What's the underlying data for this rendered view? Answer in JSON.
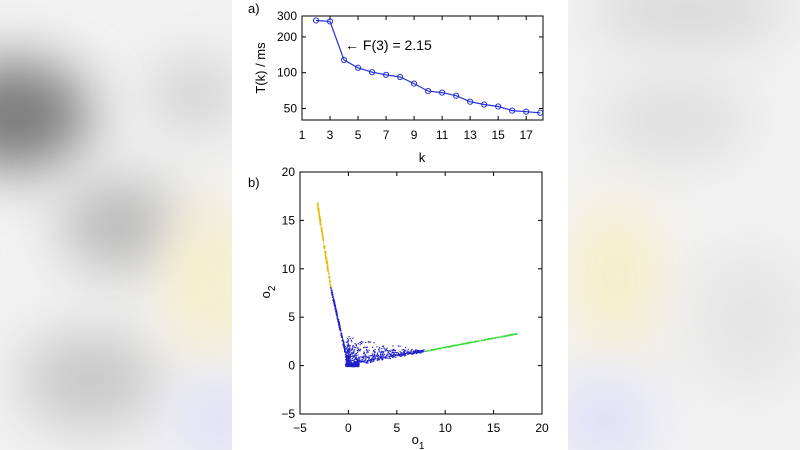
{
  "colors": {
    "line": "#2330d8",
    "cluster_main": "#1f1fc8",
    "cluster_yellow": "#e6b800",
    "cluster_green": "#33dd33"
  },
  "chart_data": [
    {
      "type": "line",
      "panel_label": "a)",
      "xlabel": "k",
      "ylabel": "T(k) / ms",
      "log_y": true,
      "xlim": [
        1,
        18.2
      ],
      "ylim": [
        40,
        300
      ],
      "x_ticks": [
        "1",
        "3",
        "5",
        "7",
        "9",
        "11",
        "13",
        "15",
        "17"
      ],
      "y_ticks": [
        "50",
        "100",
        "200",
        "300"
      ],
      "annotation": "← F(3) = 2.15",
      "series": [
        {
          "x": [
            2,
            3,
            4,
            5,
            6,
            7,
            8,
            9,
            10,
            11,
            12,
            13,
            14,
            15,
            16,
            17,
            18
          ],
          "values": [
            275,
            270,
            128,
            110,
            101,
            96,
            92,
            81,
            70,
            68,
            64,
            57,
            54,
            52,
            48,
            47,
            46
          ]
        }
      ]
    },
    {
      "type": "scatter",
      "panel_label": "b)",
      "xlabel": "o",
      "xlabel_sub": "1",
      "ylabel": "o",
      "ylabel_sub": "2",
      "xlim": [
        -5,
        20
      ],
      "ylim": [
        -5,
        20
      ],
      "x_ticks": [
        "−5",
        "0",
        "5",
        "10",
        "15",
        "20"
      ],
      "y_ticks": [
        "−5",
        "0",
        "5",
        "10",
        "15",
        "20"
      ],
      "clusters": [
        {
          "color": "yellow",
          "from": [
            -1.8,
            8.0
          ],
          "to": [
            -3.2,
            16.8
          ],
          "n": 220,
          "spread": 0.12
        },
        {
          "color": "main_arm",
          "from": [
            0.0,
            0.0
          ],
          "to": [
            -1.8,
            8.0
          ],
          "n": 260,
          "spread": 0.12
        },
        {
          "color": "main_diag",
          "from": [
            0.0,
            0.0
          ],
          "to": [
            8.0,
            1.5
          ],
          "n": 700,
          "spread": 0.25
        },
        {
          "color": "green",
          "from": [
            8.0,
            1.5
          ],
          "to": [
            17.5,
            3.3
          ],
          "n": 260,
          "spread": 0.08
        }
      ]
    }
  ]
}
